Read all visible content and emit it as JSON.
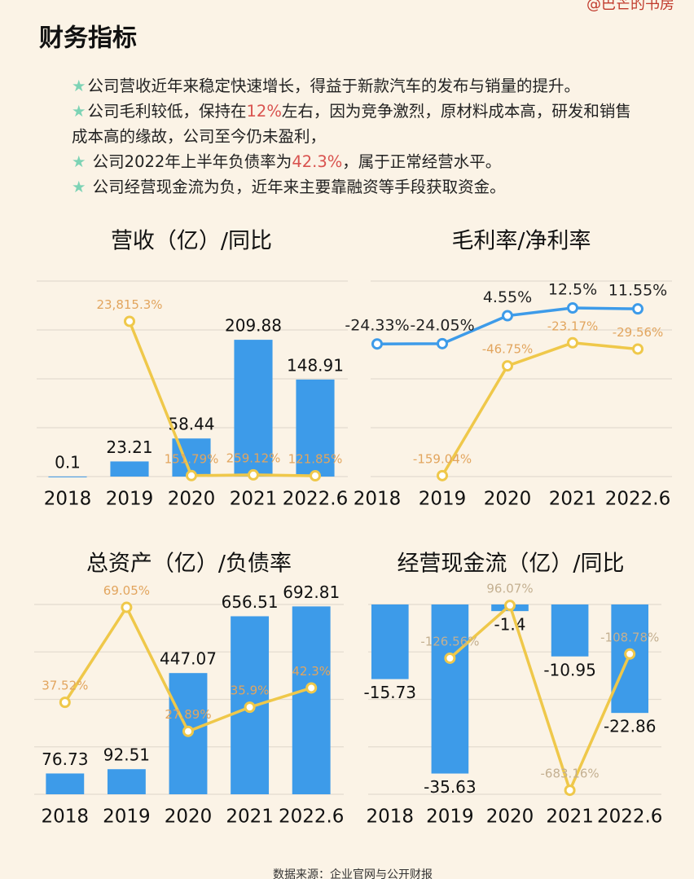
{
  "watermark": "@巴芒的书房",
  "title": "财务指标",
  "bullets": [
    [
      "公司营收近年来稳定快速增长，得益于新款汽车的发布与销量的提升。"
    ],
    [
      "公司毛利较低，保持在",
      "12%",
      "左右，因为竞争激烈，原材料成本高，研发和销售成本高的缘故，公司至今仍未盈利，"
    ],
    [
      " 公司2022年上半年负债率为",
      "42.3%",
      "，属于正常经营水平。"
    ],
    [
      " 公司经营现金流为负，近年来主要靠融资等手段获取资金。"
    ]
  ],
  "source": "数据来源：企业官网与公开财报",
  "chart_data": [
    {
      "type": "combo",
      "title": "营收（亿）/同比",
      "categories": [
        "2018",
        "2019",
        "2020",
        "2021",
        "2022.6"
      ],
      "ylim": [
        0,
        300
      ],
      "yticks": [
        0,
        75,
        150,
        225,
        300
      ],
      "y2lim": [
        0,
        30000
      ],
      "grid": true,
      "tick_labels": false,
      "series": [
        {
          "kind": "bar",
          "color": "#3d9be9",
          "values": [
            0.1,
            23.21,
            58.44,
            209.88,
            148.91
          ]
        },
        {
          "kind": "line",
          "axis": "y2",
          "color": "#efc84a",
          "label_color": "#e2a55e",
          "values": [
            null,
            23815.3,
            151.79,
            259.12,
            121.85
          ],
          "value_labels": [
            null,
            "23,815.3%",
            "151.79%",
            "259.12%",
            "121.85%"
          ]
        }
      ]
    },
    {
      "type": "line",
      "title": "毛利率/净利率",
      "categories": [
        "2018",
        "2019",
        "2020",
        "2021",
        "2022.6"
      ],
      "ylim": [
        -160,
        40
      ],
      "yticks": [
        -160,
        -110,
        -60,
        -10,
        40
      ],
      "grid": true,
      "tick_labels": false,
      "series": [
        {
          "kind": "line",
          "color": "#3d9be9",
          "label_color": "#222222",
          "values": [
            -24.33,
            -24.05,
            4.55,
            12.5,
            11.55
          ],
          "value_labels": [
            "-24.33%",
            "-24.05%",
            "4.55%",
            "12.5%",
            "11.55%"
          ]
        },
        {
          "kind": "line",
          "color": "#efc84a",
          "label_color": "#e2a55e",
          "values": [
            null,
            -159.04,
            -46.75,
            -23.17,
            -29.56
          ],
          "value_labels": [
            null,
            "-159.04%",
            "-46.75%",
            "-23.17%",
            "-29.56%"
          ]
        }
      ]
    },
    {
      "type": "combo",
      "title": "总资产（亿）/负债率",
      "categories": [
        "2018",
        "2019",
        "2020",
        "2021",
        "2022.6"
      ],
      "ylim": [
        0,
        700
      ],
      "yticks": [
        0,
        175,
        350,
        525,
        700
      ],
      "y2lim": [
        7,
        70
      ],
      "grid": true,
      "tick_labels": false,
      "series": [
        {
          "kind": "bar",
          "color": "#3d9be9",
          "values": [
            76.73,
            92.51,
            447.07,
            656.51,
            692.81
          ]
        },
        {
          "kind": "line",
          "axis": "y2",
          "color": "#efc84a",
          "label_color": "#e2a55e",
          "values": [
            37.52,
            69.05,
            27.89,
            35.9,
            42.3
          ],
          "value_labels": [
            "37.52%",
            "69.05%",
            "27.89%",
            "35.9%",
            "42.3%"
          ]
        }
      ]
    },
    {
      "type": "combo",
      "title": "经营现金流（亿）/同比",
      "categories": [
        "2018",
        "2019",
        "2020",
        "2021",
        "2022.6"
      ],
      "ylim": [
        -40,
        0
      ],
      "yticks": [
        -40,
        -30,
        -20,
        -10,
        0
      ],
      "y2lim": [
        -700,
        100
      ],
      "grid": true,
      "tick_labels": false,
      "series": [
        {
          "kind": "bar",
          "color": "#3d9be9",
          "values": [
            -15.73,
            -35.63,
            -1.4,
            -10.95,
            -22.86
          ]
        },
        {
          "kind": "line",
          "axis": "y2",
          "color": "#efc84a",
          "label_color": "#c4b091",
          "values": [
            null,
            -126.56,
            96.07,
            -683.16,
            -108.78
          ],
          "value_labels": [
            null,
            "-126.56%",
            "96.07%",
            "-683.16%",
            "-108.78%"
          ]
        }
      ]
    }
  ]
}
